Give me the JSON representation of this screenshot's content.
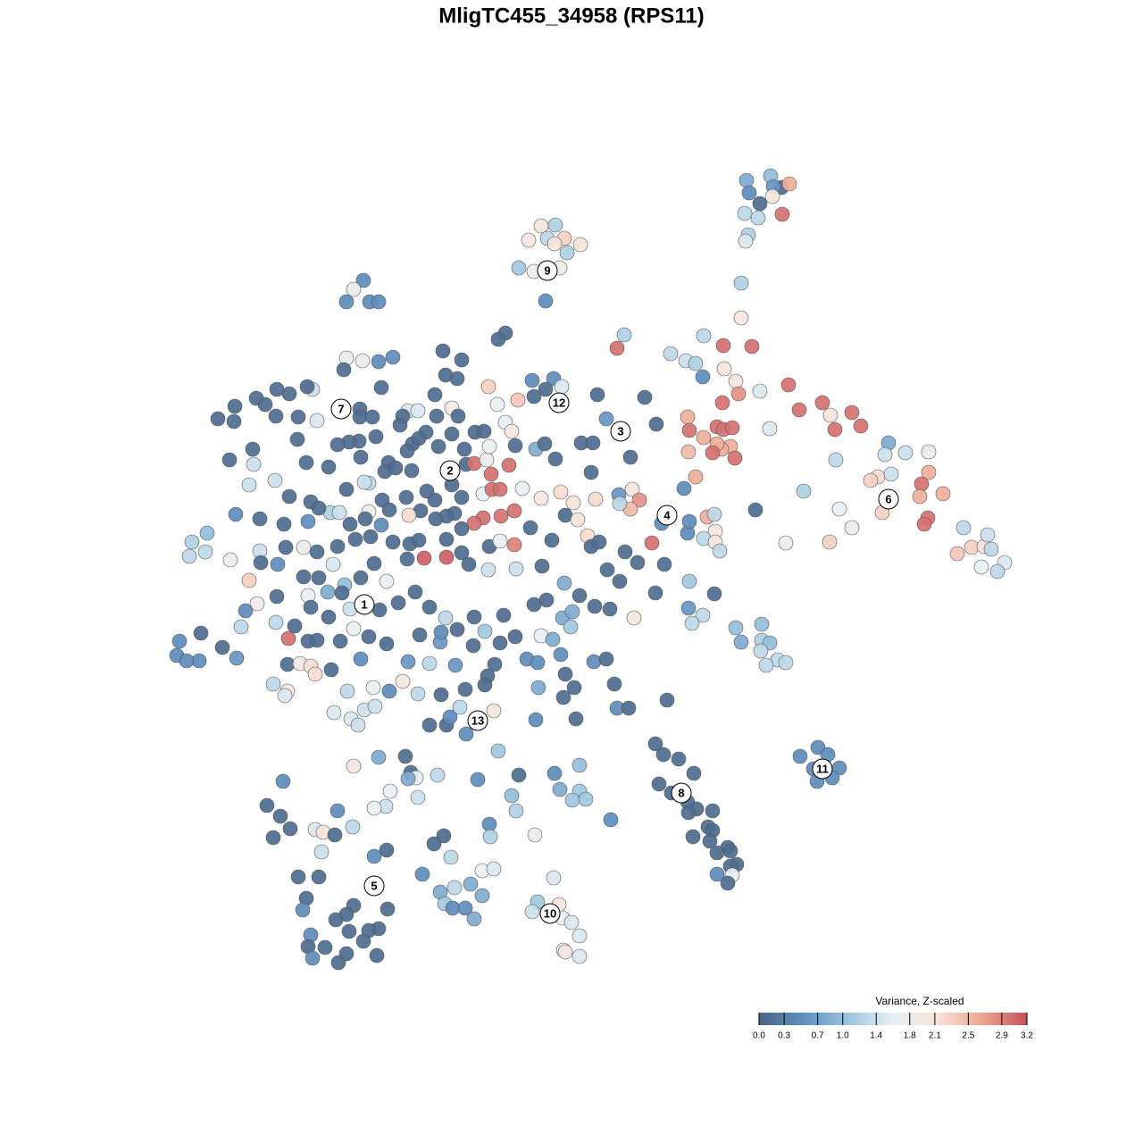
{
  "chart_data": {
    "type": "scatter",
    "title": "MligTC455_34958 (RPS11)",
    "xlim": [
      0,
      1280
    ],
    "ylim": [
      1280,
      0
    ],
    "x": [
      836,
      863,
      875,
      884,
      839,
      866,
      851,
      865,
      834,
      849,
      876,
      838,
      835,
      606,
      622,
      592,
      613,
      632,
      621,
      650,
      635,
      581,
      598,
      627,
      611,
      407,
      396,
      388,
      414,
      424,
      566,
      558,
      496,
      517,
      499,
      512,
      487,
      388,
      406,
      424,
      440,
      385,
      427,
      350,
      344,
      310,
      324,
      287,
      263,
      297,
      244,
      262,
      309,
      334,
      355,
      403,
      403,
      417,
      457,
      468,
      451,
      489,
      506,
      513,
      448,
      477,
      506,
      532,
      542,
      421,
      402,
      391,
      378,
      333,
      283,
      257,
      284,
      343,
      368,
      404,
      435,
      462,
      469,
      456,
      491,
      520,
      522,
      531,
      550,
      570,
      545,
      548,
      580,
      596,
      620,
      629,
      611,
      598,
      557,
      547,
      566,
      573,
      577,
      600,
      610,
      622,
      651,
      664,
      662,
      669,
      679,
      706,
      735,
      722,
      691,
      699,
      413,
      408,
      388,
      324,
      348,
      279,
      308,
      431,
      443,
      461,
      478,
      455,
      428,
      506,
      487,
      517,
      541,
      551,
      560,
      585,
      606,
      628,
      642,
      667,
      693,
      708,
      716,
      706,
      694,
      633,
      647,
      576,
      561,
      541,
      531,
      509,
      500,
      488,
      471,
      458,
      436,
      413,
      409,
      392,
      370,
      380,
      357,
      345,
      318,
      291,
      264,
      232,
      215,
      212,
      230,
      258,
      291,
      320,
      340,
      355,
      373,
      378,
      398,
      415,
      427,
      440,
      459,
      469,
      500,
      517,
      548,
      560,
      576,
      594,
      618,
      658,
      662,
      671,
      700,
      730,
      741,
      770,
      772,
      792,
      801,
      788,
      801,
      806,
      800,
      292,
      311,
      340,
      357,
      386,
      279,
      310,
      345,
      367,
      383,
      404,
      419,
      433,
      456,
      475,
      500,
      517,
      525,
      547,
      578,
      607,
      632,
      649,
      666,
      683,
      694,
      680,
      714,
      744,
      734,
      772,
      800,
      771,
      787,
      775,
      710,
      288,
      275,
      309,
      270,
      323,
      345,
      355,
      381,
      396,
      413,
      433,
      470,
      493,
      494,
      512,
      530,
      543,
      560,
      577,
      606,
      619,
      630,
      639,
      641,
      612,
      598,
      564,
      531,
      499,
      481,
      465,
      446,
      425,
      392,
      368,
      348,
      330,
      249,
      225,
      265,
      223,
      201,
      198,
      209,
      322,
      336,
      348,
      353,
      371,
      404,
      457,
      481,
      510,
      554,
      546,
      590,
      602,
      628,
      665,
      679,
      306,
      322,
      319,
      389,
      418,
      436,
      451,
      468,
      494,
      543,
      521,
      633,
      643,
      603,
      631,
      688,
      691,
      704,
      747,
      374,
      393,
      401,
      408,
      420,
      481,
      500,
      504,
      515,
      553,
      600,
      645,
      522,
      558,
      454,
      424,
      396,
      460,
      490,
      466,
      457,
      535,
      581,
      621,
      649,
      627,
      649,
      656,
      641,
      573,
      578,
      468,
      437,
      432,
      419,
      317,
      299,
      314,
      325,
      306,
      378,
      395,
      353,
      362,
      375,
      360,
      433,
      419,
      497,
      486,
      548,
      549,
      599,
      684,
      505,
      540,
      553,
      473,
      334,
      357,
      493,
      509,
      527,
      540,
      498,
      507,
      521,
      531,
      343,
      339,
      396,
      388,
      376,
      434,
      424,
      413,
      391,
      407,
      348,
      345,
      364,
      388,
      350,
      379,
      422,
      620,
      602,
      626,
      596,
      630,
      640,
      649,
      631,
      633,
      649,
      734,
      743,
      760,
      777,
      738,
      752,
      770,
      780,
      798,
      771,
      793,
      798,
      776,
      795,
      815,
      803,
      818,
      825,
      818,
      803,
      820,
      815,
      916,
      896,
      927,
      911,
      940,
      915,
      932,
      830,
      830,
      788,
      810,
      842,
      751,
      768,
      779,
      787,
      811,
      824,
      827,
      851,
      809,
      883,
      770,
      772,
      788,
      803,
      810,
      820,
      818,
      808,
      803,
      798,
      823,
      771,
      779,
      766,
      862,
      895,
      921,
      930,
      954,
      964,
      935,
      846,
      900,
      936,
      995,
      991,
      1014,
      1040,
      1040,
      1032,
      1030,
      1056,
      983,
      975,
      998,
      940,
      988,
      954,
      1039,
      1035,
      1079,
      880,
      929,
      1088,
      1072,
      1102,
      1106,
      1110,
      1099,
      1125,
      1117,
      824,
      830,
      853,
      853,
      862,
      852,
      871,
      880,
      858
    ],
    "y": [
      202,
      197,
      210,
      206,
      216,
      209,
      228,
      220,
      239,
      244,
      240,
      263,
      270,
      253,
      252,
      269,
      267,
      267,
      273,
      274,
      283,
      300,
      304,
      300,
      337,
      314,
      324,
      338,
      338,
      338,
      373,
      380,
      393,
      403,
      420,
      424,
      442,
      401,
      404,
      405,
      400,
      414,
      434,
      436,
      433,
      436,
      441,
      446,
      455,
      453,
      469,
      472,
      466,
      467,
      471,
      458,
      467,
      467,
      460,
      460,
      466,
      466,
      457,
      466,
      476,
      484,
      486,
      484,
      483,
      489,
      494,
      495,
      498,
      492,
      503,
      515,
      520,
      518,
      523,
      512,
      518,
      497,
      491,
      505,
      500,
      503,
      520,
      519,
      531,
      521,
      515,
      500,
      448,
      426,
      424,
      433,
      436,
      444,
      453,
      433,
      473,
      483,
      499,
      503,
      497,
      514,
      496,
      496,
      529,
      442,
      469,
      512,
      475,
      445,
      390,
      375,
      541,
      540,
      548,
      556,
      562,
      543,
      538,
      528,
      524,
      527,
      550,
      557,
      560,
      543,
      560,
      557,
      553,
      548,
      548,
      547,
      558,
      551,
      563,
      559,
      554,
      548,
      560,
      570,
      564,
      577,
      582,
      572,
      578,
      580,
      586,
      575,
      578,
      581,
      572,
      577,
      571,
      573,
      581,
      587,
      574,
      574,
      569,
      584,
      587,
      581,
      576,
      597,
      607,
      623,
      618,
      627,
      617,
      613,
      613,
      618,
      632,
      612,
      604,
      601,
      588,
      607,
      609,
      605,
      604,
      592,
      612,
      606,
      610,
      591,
      605,
      600,
      612,
      607,
      618,
      608,
      586,
      597,
      584,
      579,
      595,
      603,
      607,
      617,
      576,
      630,
      632,
      646,
      647,
      655,
      650,
      668,
      667,
      663,
      664,
      647,
      631,
      651,
      626,
      625,
      624,
      619,
      632,
      638,
      637,
      634,
      653,
      667,
      679,
      682,
      651,
      638,
      630,
      632,
      664,
      651,
      665,
      681,
      689,
      698,
      692,
      676,
      684,
      697,
      702,
      715,
      718,
      717,
      718,
      704,
      713,
      721,
      711,
      719,
      708,
      705,
      723,
      707,
      720,
      713,
      712,
      716,
      692,
      702,
      685,
      672,
      677,
      689,
      691,
      692,
      680,
      663,
      675,
      683,
      682,
      691,
      680,
      701,
      725,
      709,
      737,
      740,
      718,
      734,
      740,
      744,
      743,
      746,
      755,
      750,
      738,
      741,
      743,
      745,
      744,
      757,
      738,
      742,
      733,
      741,
      738,
      766,
      774,
      779,
      774,
      770,
      774,
      763,
      777,
      778,
      767,
      772,
      755,
      770,
      770,
      781,
      766,
      793,
      793,
      784,
      798,
      805,
      812,
      795,
      791,
      812,
      812,
      803,
      792,
      796,
      806,
      805,
      822,
      841,
      847,
      848,
      858,
      865,
      868,
      871,
      872,
      873,
      868,
      866,
      857,
      884,
      886,
      895,
      896,
      891,
      908,
      893,
      886,
      903,
      905,
      875,
      902,
      914,
      928,
      938,
      908,
      926,
      929,
      932,
      935,
      954,
      952,
      959,
      936,
      945,
      923,
      937,
      935,
      918,
      960,
      975,
      973,
      979,
      982,
      982,
      999,
      994,
      990,
      1003,
      1012,
      1017,
      1017,
      1029,
      1006,
      1019,
      1014,
      1024,
      1030,
      1018,
      1040,
      1042,
      1043,
      1054,
      1047,
      1060,
      1061,
      1068,
      1073,
      1078,
      1070,
      983,
      1010,
      1013,
      1021,
      1028,
      1033,
      1048,
      1064,
      1066,
      1071,
      833,
      845,
      850,
      866,
      878,
      888,
      898,
      906,
      908,
      910,
      926,
      930,
      937,
      942,
      949,
      955,
      953,
      968,
      970,
      979,
      980,
      989,
      837,
      847,
      845,
      861,
      860,
      875,
      871,
      317,
      356,
      376,
      387,
      388,
      396,
      404,
      407,
      422,
      413,
      427,
      441,
      438,
      451,
      431,
      467,
      482,
      490,
      478,
      481,
      479,
      500,
      503,
      497,
      507,
      513,
      506,
      534,
      547,
      480,
      459,
      451,
      465,
      462,
      477,
      481,
      571,
      550,
      515,
      496,
      509,
      507,
      506,
      529,
      542,
      556,
      553,
      534,
      538,
      531,
      570,
      574,
      591,
      580,
      587,
      591,
      608,
      607,
      613,
      620,
      612,
      599,
      615,
      635,
      630,
      640,
      703,
      719,
      699,
      717,
      720,
      729,
      739,
      742,
      745
    ],
    "values": [
      0.8,
      1.0,
      0.1,
      2.6,
      0.5,
      0.6,
      0.1,
      2.0,
      1.3,
      1.3,
      3.0,
      1.2,
      1.5,
      2.0,
      1.2,
      2.0,
      1.3,
      2.3,
      2.1,
      2.1,
      1.2,
      1.1,
      1.9,
      1.8,
      0.5,
      0.5,
      1.8,
      0.5,
      0.5,
      0.5,
      0.1,
      0.1,
      0.1,
      0.1,
      0.1,
      0.1,
      0.1,
      1.8,
      1.8,
      0.5,
      0.5,
      0.1,
      0.1,
      1.4,
      0.1,
      0.1,
      0.1,
      0.1,
      0.1,
      0.1,
      0.1,
      0.1,
      0.1,
      0.1,
      1.5,
      0.1,
      0.1,
      0.1,
      1.5,
      1.5,
      0.1,
      0.1,
      1.9,
      0.1,
      0.1,
      0.1,
      0.1,
      0.1,
      0.1,
      0.1,
      0.1,
      0.1,
      0.1,
      0.1,
      0.1,
      0.1,
      1.4,
      0.1,
      0.1,
      0.1,
      0.1,
      0.1,
      0.1,
      0.1,
      0.1,
      0.1,
      0.1,
      3.0,
      3.0,
      3.0,
      1.8,
      1.6,
      2.4,
      0.5,
      0.5,
      1.5,
      0.1,
      0.1,
      1.6,
      2.3,
      1.6,
      2.0,
      0.1,
      0.8,
      0.1,
      0.1,
      0.1,
      0.1,
      0.1,
      0.1,
      0.6,
      0.1,
      0.1,
      0.1,
      3.0,
      1.2,
      1.3,
      1.4,
      0.1,
      0.1,
      0.1,
      1.4,
      1.4,
      0.1,
      0.1,
      0.1,
      0.1,
      0.1,
      0.1,
      0.1,
      0.1,
      0.1,
      1.6,
      3.0,
      3.0,
      1.6,
      2.0,
      2.2,
      2.1,
      2.2,
      0.6,
      2.0,
      2.8,
      2.5,
      1.3,
      0.1,
      2.1,
      3.0,
      3.0,
      3.0,
      3.0,
      0.1,
      0.1,
      0.1,
      0.1,
      2.2,
      0.1,
      1.8,
      0.1,
      0.1,
      1.2,
      1.4,
      0.1,
      0.5,
      0.1,
      0.1,
      0.5,
      1.0,
      1.2,
      1.3,
      1.3,
      1.8,
      1.4,
      0.1,
      1.8,
      0.1,
      1.5,
      0.1,
      0.1,
      0.1,
      0.5,
      0.1,
      0.1,
      0.1,
      0.1,
      0.1,
      0.1,
      1.6,
      2.9,
      0.1,
      0.1,
      2.2,
      0.1,
      0.1,
      0.1,
      3.0,
      0.5,
      0.5,
      0.5,
      2.6,
      2.0,
      1.3,
      2.0,
      1.3,
      1.3,
      0.1,
      0.5,
      0.1,
      0.1,
      1.0,
      2.3,
      0.1,
      1.6,
      0.8,
      0.1,
      0.1,
      0.1,
      1.6,
      0.1,
      3.1,
      3.1,
      0.1,
      0.1,
      1.4,
      1.4,
      0.1,
      0.8,
      0.1,
      0.1,
      0.1,
      0.1,
      0.1,
      0.1,
      0.1,
      0.1,
      1.1,
      0.1,
      0.6,
      1.3,
      1.3,
      2.0,
      1.9,
      0.5,
      1.3,
      1.3,
      3.0,
      0.1,
      0.1,
      0.1,
      1.6,
      0.1,
      0.1,
      0.1,
      0.6,
      0.5,
      0.1,
      0.1,
      1.1,
      0.1,
      0.1,
      1.6,
      0.8,
      0.8,
      1.1,
      0.8,
      0.1,
      0.1,
      0.1,
      0.1,
      1.3,
      0.1,
      0.1,
      0.1,
      0.1,
      1.4,
      0.1,
      0.1,
      0.1,
      0.1,
      0.1,
      0.6,
      0.5,
      0.5,
      0.5,
      0.5,
      0.1,
      1.9,
      2.2,
      2.2,
      0.1,
      0.5,
      0.6,
      1.3,
      0.6,
      0.1,
      0.1,
      0.5,
      0.5,
      0.5,
      0.5,
      0.1,
      1.3,
      2.0,
      1.5,
      1.3,
      1.6,
      0.5,
      2.0,
      1.3,
      0.1,
      0.1,
      0.1,
      0.1,
      0.1,
      0.8,
      0.1,
      0.1,
      0.5,
      0.1,
      0.1,
      1.5,
      1.5,
      1.4,
      1.4,
      1.4,
      0.1,
      0.1,
      0.5,
      1.3,
      2.0,
      0.5,
      0.1,
      0.5,
      1.1,
      0.1,
      0.8,
      2.0,
      0.1,
      1.3,
      1.6,
      0.8,
      0.5,
      0.1,
      0.5,
      1.0,
      0.8,
      1.1,
      1.1,
      1.1,
      1.0,
      1.2,
      1.4,
      1.6,
      1.4,
      1.6,
      0.5,
      0.1,
      0.1,
      0.1,
      0.1,
      0.5,
      1.3,
      1.5,
      2.1,
      0.1,
      1.4,
      0.1,
      0.5,
      0.1,
      0.1,
      0.5,
      1.2,
      1.8,
      0.5,
      1.3,
      1.6,
      1.5,
      0.5,
      0.1,
      0.1,
      0.8,
      1.3,
      0.8,
      0.8,
      1.1,
      0.5,
      0.5,
      0.8,
      0.1,
      0.5,
      0.1,
      0.1,
      0.1,
      0.1,
      0.1,
      0.1,
      0.1,
      0.1,
      0.5,
      0.1,
      0.1,
      0.1,
      0.5,
      0.1,
      0.1,
      1.5,
      1.1,
      2.0,
      1.4,
      1.6,
      1.5,
      1.5,
      1.8,
      2.0,
      1.5,
      0.1,
      0.1,
      0.1,
      0.1,
      0.1,
      0.1,
      0.1,
      0.1,
      0.1,
      0.1,
      0.1,
      0.1,
      0.1,
      0.1,
      0.1,
      0.1,
      0.1,
      0.1,
      0.1,
      0.5,
      1.6,
      0.1,
      0.5,
      0.5,
      0.5,
      0.5,
      0.5,
      0.5,
      0.5,
      1.2,
      2.0,
      1.3,
      3.0,
      3.0,
      1.3,
      1.4,
      1.2,
      0.5,
      2.1,
      2.0,
      2.8,
      1.5,
      3.0,
      3.0,
      2.6,
      3.0,
      2.6,
      3.0,
      3.0,
      3.0,
      2.6,
      2.6,
      2.6,
      3.0,
      3.0,
      2.5,
      2.6,
      0.5,
      1.5,
      3.0,
      3.0,
      2.1,
      3.0,
      3.0,
      3.0,
      0.1,
      1.2,
      1.3,
      0.8,
      1.4,
      1.4,
      1.8,
      2.6,
      3.0,
      2.6,
      2.6,
      2.2,
      2.3,
      1.4,
      1.6,
      2.3,
      1.8,
      3.0,
      3.0,
      1.3,
      1.7,
      2.3,
      2.3,
      2.4,
      2.1,
      1.4,
      1.3,
      1.6,
      1.5,
      1.3,
      1.0,
      0.8,
      1.0,
      1.2,
      1.0,
      1.3,
      1.3,
      1.3,
      1.3
    ],
    "annotations": [
      {
        "label": "1",
        "x": 408,
        "y": 677
      },
      {
        "label": "2",
        "x": 504,
        "y": 527
      },
      {
        "label": "3",
        "x": 695,
        "y": 483
      },
      {
        "label": "4",
        "x": 747,
        "y": 577
      },
      {
        "label": "5",
        "x": 419,
        "y": 992
      },
      {
        "label": "6",
        "x": 995,
        "y": 559
      },
      {
        "label": "7",
        "x": 382,
        "y": 458
      },
      {
        "label": "8",
        "x": 763,
        "y": 888
      },
      {
        "label": "9",
        "x": 613,
        "y": 303
      },
      {
        "label": "10",
        "x": 616,
        "y": 1023
      },
      {
        "label": "11",
        "x": 921,
        "y": 861
      },
      {
        "label": "12",
        "x": 626,
        "y": 451
      },
      {
        "label": "13",
        "x": 535,
        "y": 807
      }
    ],
    "colorbar": {
      "title": "Variance, Z-scaled",
      "lim": [
        0,
        3.2
      ],
      "ticks": [
        {
          "value": 0,
          "label": "0.0"
        },
        0.3,
        0.7,
        {
          "value": 1,
          "label": "1.0"
        },
        1.4,
        1.8,
        2.1,
        2.5,
        2.9,
        3.2
      ],
      "colors": [
        "#4a6585",
        "#5f8fc0",
        "#9cc5de",
        "#e8f0f4",
        "#f8e3d8",
        "#eda78f",
        "#c5505d"
      ]
    }
  }
}
